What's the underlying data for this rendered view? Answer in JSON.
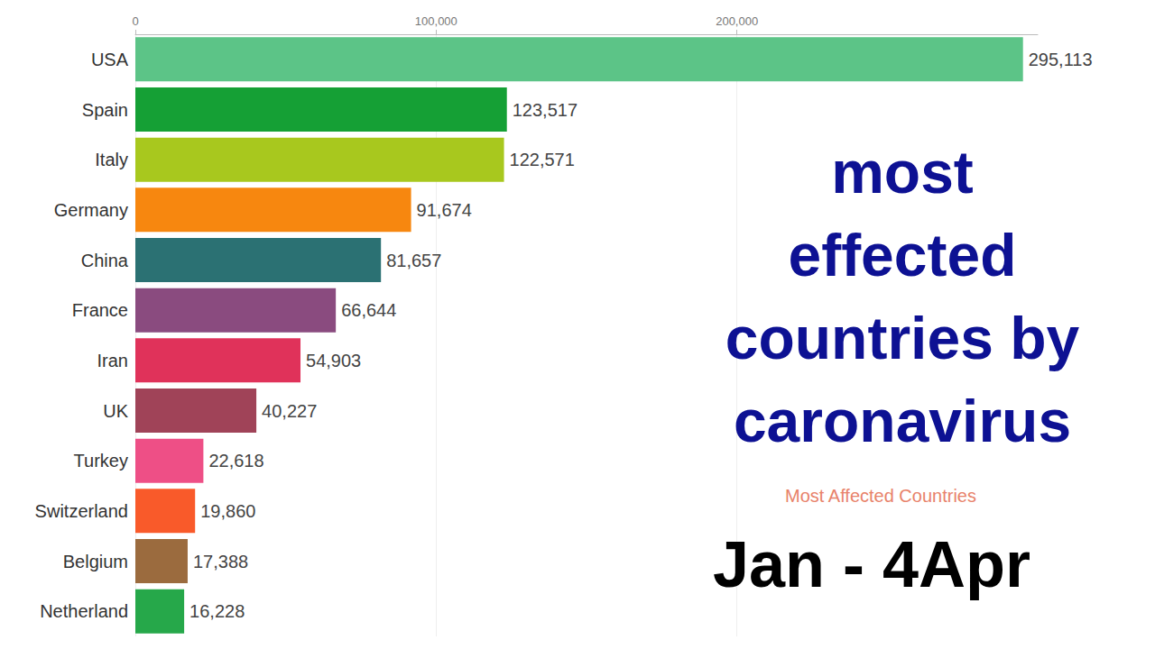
{
  "chart_data": {
    "type": "bar",
    "orientation": "horizontal",
    "title": "most effected countries by caronavirus",
    "subtitle": "Most Affected Countries",
    "annotations": [
      "Jan - 4Apr"
    ],
    "categories": [
      "USA",
      "Spain",
      "Italy",
      "Germany",
      "China",
      "France",
      "Iran",
      "UK",
      "Turkey",
      "Switzerland",
      "Belgium",
      "Netherland"
    ],
    "values": [
      295113,
      123517,
      122571,
      91674,
      81657,
      66644,
      54903,
      40227,
      22618,
      19860,
      17388,
      16228
    ],
    "value_labels": [
      "295,113",
      "123,517",
      "122,571",
      "91,674",
      "81,657",
      "66,644",
      "54,903",
      "40,227",
      "22,618",
      "19,860",
      "17,388",
      "16,228"
    ],
    "colors": [
      "#5cc487",
      "#15a035",
      "#a8c81e",
      "#f7870f",
      "#2b7173",
      "#8a4b7f",
      "#e0325a",
      "#a04358",
      "#ee4f86",
      "#f95a2a",
      "#9b6b3e",
      "#26a84a"
    ],
    "xlim": [
      0,
      300000
    ],
    "xticks": [
      0,
      {
        "value": 100000,
        "label": "100,000"
      },
      {
        "value": 200000,
        "label": "200,000"
      }
    ],
    "data_labels": true,
    "grid": true
  }
}
